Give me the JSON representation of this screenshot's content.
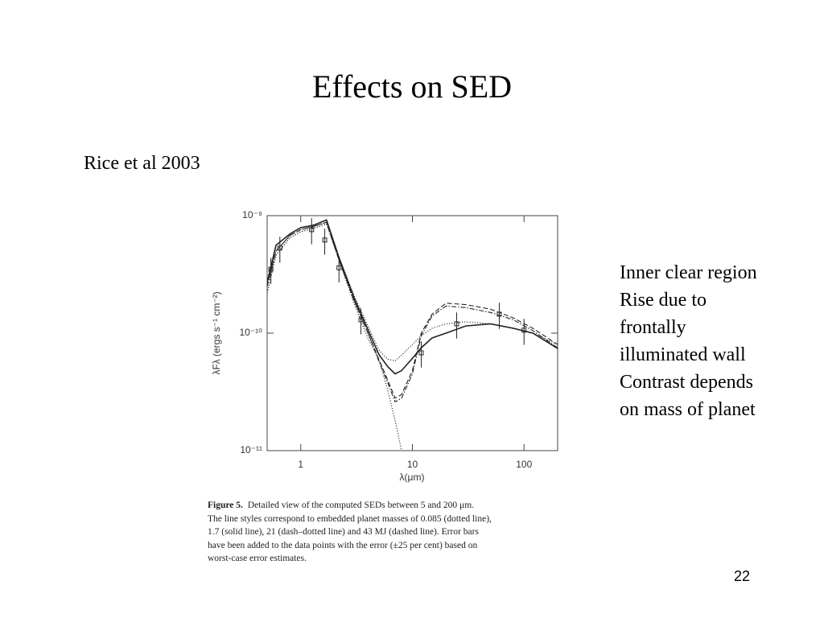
{
  "slide": {
    "title": "Effects on SED",
    "source": "Rice et al 2003",
    "notes": [
      "Inner clear region",
      "Rise due to",
      "frontally",
      "illuminated wall",
      "Contrast depends",
      "on mass of planet"
    ],
    "page_number": "22"
  },
  "chart_data": {
    "type": "line",
    "xlabel": "λ(μm)",
    "ylabel": "λFλ (ergs s⁻¹ cm⁻²)",
    "xlog": true,
    "ylog": true,
    "color": "#222222",
    "xlim": [
      0.5,
      200
    ],
    "xticks": [
      1,
      10,
      100
    ],
    "ylim": [
      1e-11,
      1e-09
    ],
    "yticks": [
      {
        "value": 1e-11,
        "label": "10⁻¹¹"
      },
      {
        "value": 1e-10,
        "label": "10⁻¹⁰"
      },
      {
        "value": 1e-09,
        "label": "10⁻⁹"
      }
    ],
    "x": [
      0.5,
      0.6,
      0.8,
      1,
      1.3,
      1.7,
      2.2,
      3,
      4,
      5,
      6,
      7,
      8,
      10,
      12,
      15,
      20,
      30,
      50,
      80,
      120,
      200
    ],
    "series": [
      {
        "dash": "solid",
        "values": [
          2.7e-10,
          5.6e-10,
          7e-10,
          7.9e-10,
          8.3e-10,
          9.2e-10,
          4.4e-10,
          2e-10,
          1.07e-10,
          6.6e-11,
          5.2e-11,
          4.5e-11,
          4.8e-11,
          6.1e-11,
          7.5e-11,
          9.1e-11,
          1e-10,
          1.15e-10,
          1.2e-10,
          1.1e-10,
          1e-10,
          7.4e-11
        ]
      },
      {
        "dash": "dashed",
        "values": [
          2.5e-10,
          5e-10,
          6.8e-10,
          7.6e-10,
          8.1e-10,
          8.8e-10,
          4.2e-10,
          1.9e-10,
          1e-10,
          6e-11,
          4e-11,
          2.8e-11,
          3e-11,
          4.8e-11,
          1e-10,
          1.45e-10,
          1.8e-10,
          1.75e-10,
          1.6e-10,
          1.35e-10,
          1.1e-10,
          8e-11
        ]
      },
      {
        "dash": "dashdot",
        "values": [
          2.5e-10,
          5e-10,
          6.8e-10,
          7.6e-10,
          8.1e-10,
          8.8e-10,
          4.2e-10,
          1.9e-10,
          1e-10,
          5.8e-11,
          3.8e-11,
          2.6e-11,
          2.8e-11,
          4.5e-11,
          9.5e-11,
          1.4e-10,
          1.7e-10,
          1.65e-10,
          1.5e-10,
          1.3e-10,
          1.05e-10,
          7.5e-11
        ]
      },
      {
        "dash": "dotted",
        "values": [
          2.2e-10,
          4.6e-10,
          6.5e-10,
          7.3e-10,
          7.8e-10,
          8.5e-10,
          4.4e-10,
          2.1e-10,
          1.15e-10,
          7.2e-11,
          6e-11,
          5.8e-11,
          6.5e-11,
          8e-11,
          9.5e-11,
          1.1e-10,
          1.2e-10,
          1.25e-10,
          1.2e-10,
          1.1e-10,
          1e-10,
          8e-11
        ]
      },
      {
        "dash": "dotted",
        "values": [
          2.2e-10,
          4.6e-10,
          6.5e-10,
          7.3e-10,
          7.8e-10,
          8.5e-10,
          4.2e-10,
          1.8e-10,
          9e-11,
          6e-11,
          3.3e-11,
          1.8e-11,
          1e-11,
          null,
          null,
          null,
          null,
          null,
          null,
          null,
          null,
          null
        ]
      }
    ],
    "points": {
      "x": [
        0.54,
        0.65,
        1.25,
        1.64,
        2.2,
        3.46,
        12,
        24.9,
        60,
        100
      ],
      "values": [
        3.5e-10,
        5.3e-10,
        7.6e-10,
        6.2e-10,
        3.6e-10,
        1.3e-10,
        6.8e-11,
        1.2e-10,
        1.45e-10,
        1.06e-10
      ],
      "errors": [
        8.75e-11,
        1.325e-10,
        1.9e-10,
        1.55e-10,
        9e-11,
        3.25e-11,
        1.7e-11,
        3e-11,
        3.625e-11,
        2.65e-11
      ]
    }
  },
  "caption": {
    "label": "Figure 5.",
    "lines": [
      "Detailed view of the computed SEDs between 5 and 200 μm.",
      "The line styles correspond to embedded planet masses of 0.085 (dotted line),",
      "1.7 (solid line), 21 (dash–dotted line) and 43 MJ (dashed line). Error bars",
      "have been added to the data points with the error (±25 per cent) based on",
      "worst-case error estimates."
    ]
  }
}
